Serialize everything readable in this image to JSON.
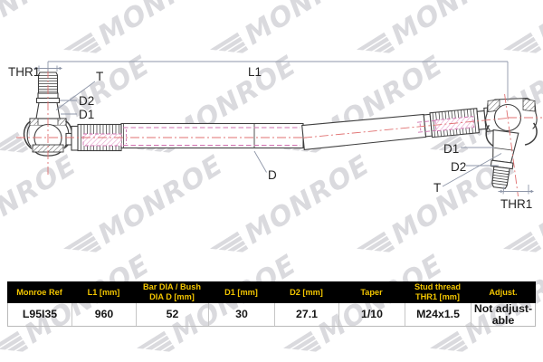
{
  "watermark": {
    "text": "MONROE"
  },
  "diagram": {
    "labels": {
      "thr1_left": "THR1",
      "t_left": "T",
      "d2_left": "D2",
      "d1_left": "D1",
      "l1": "L1",
      "d": "D",
      "d1_right": "D1",
      "d2_right": "D2",
      "t_right": "T",
      "thr1_right": "THR1"
    },
    "colors": {
      "part_line": "#3f3f3f",
      "dimension_line": "#8e96a8",
      "centerline": "#e07070",
      "hidden_line": "#cf6faf",
      "pink_hatch": "#e8a5cd",
      "watermark": "#d8d8dc"
    }
  },
  "table": {
    "headers": [
      "Monroe Ref",
      "L1 [mm]",
      "Bar DIA / Bush DIA D [mm]",
      "D1 [mm]",
      "D2 [mm]",
      "Taper",
      "Stud thread THR1 [mm]",
      "Adjust."
    ],
    "row": [
      "L95I35",
      "960",
      "52",
      "30",
      "27.1",
      "1/10",
      "M24x1.5",
      "Not adjust-able"
    ]
  }
}
